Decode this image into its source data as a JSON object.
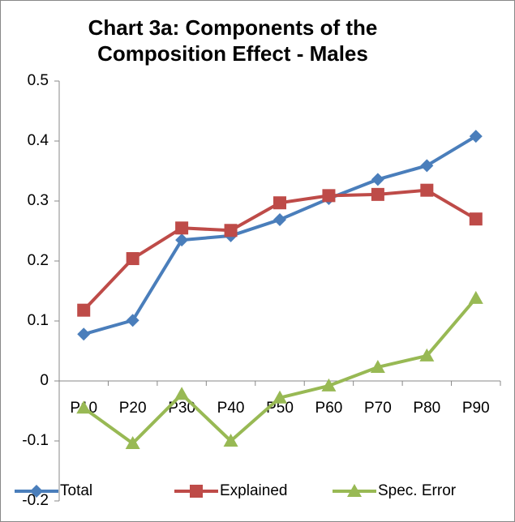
{
  "chart_data": {
    "type": "line",
    "title": "Chart 3a: Components of the Composition Effect - Males",
    "categories": [
      "P10",
      "P20",
      "P30",
      "P40",
      "P50",
      "P60",
      "P70",
      "P80",
      "P90"
    ],
    "series": [
      {
        "name": "Total",
        "color": "#4a7ebb",
        "marker": "diamond",
        "values": [
          0.078,
          0.101,
          0.235,
          0.242,
          0.269,
          0.304,
          0.336,
          0.359,
          0.408
        ]
      },
      {
        "name": "Explained",
        "color": "#be4b48",
        "marker": "square",
        "values": [
          0.118,
          0.204,
          0.255,
          0.251,
          0.297,
          0.309,
          0.311,
          0.318,
          0.27
        ]
      },
      {
        "name": "Spec. Error",
        "color": "#98b954",
        "marker": "triangle",
        "values": [
          -0.045,
          -0.104,
          -0.022,
          -0.1,
          -0.028,
          -0.008,
          0.023,
          0.042,
          0.138
        ]
      }
    ],
    "ylim": [
      -0.2,
      0.5
    ],
    "yticks": [
      -0.2,
      -0.1,
      0,
      0.1,
      0.2,
      0.3,
      0.4,
      0.5
    ],
    "grid": false,
    "legend": "bottom"
  }
}
